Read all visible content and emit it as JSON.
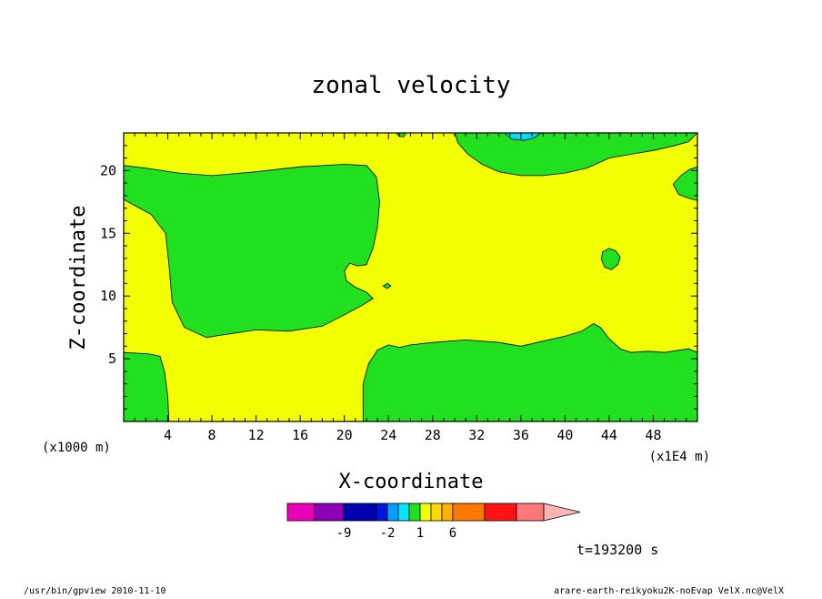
{
  "chart_data": {
    "type": "heatmap",
    "title": "zonal velocity",
    "xlabel": "X-coordinate",
    "ylabel": "Z-coordinate",
    "x_unit_left": "(x1000 m)",
    "x_unit_right": "(x1E4 m)",
    "xlim": [
      0,
      52
    ],
    "ylim": [
      0,
      23
    ],
    "x_ticks": [
      4,
      8,
      12,
      16,
      20,
      24,
      28,
      32,
      36,
      40,
      44,
      48
    ],
    "y_ticks": [
      5,
      10,
      15,
      20
    ],
    "background_color": "#f2ff00",
    "regions": [
      {
        "name": "upper-left-green",
        "color": "#20e020",
        "points": [
          [
            0,
            20.4
          ],
          [
            2,
            20.2
          ],
          [
            5,
            19.8
          ],
          [
            8,
            19.6
          ],
          [
            12,
            19.9
          ],
          [
            16,
            20.3
          ],
          [
            20,
            20.5
          ],
          [
            22,
            20.4
          ],
          [
            22.9,
            19.5
          ],
          [
            23.2,
            17.5
          ],
          [
            23.0,
            15.5
          ],
          [
            22.6,
            13.8
          ],
          [
            22,
            12.5
          ],
          [
            21.2,
            12.4
          ],
          [
            20.5,
            12.6
          ],
          [
            20,
            12
          ],
          [
            20.2,
            11.2
          ],
          [
            21,
            10.7
          ],
          [
            22,
            10.3
          ],
          [
            22.6,
            9.8
          ],
          [
            21.5,
            9.2
          ],
          [
            20,
            8.5
          ],
          [
            18,
            7.6
          ],
          [
            15,
            7.2
          ],
          [
            12,
            7.3
          ],
          [
            9,
            6.9
          ],
          [
            7.5,
            6.7
          ],
          [
            5.5,
            7.5
          ],
          [
            4.4,
            9.5
          ],
          [
            4.1,
            12.5
          ],
          [
            3.8,
            15
          ],
          [
            2.5,
            16.5
          ],
          [
            0,
            17.7
          ]
        ]
      },
      {
        "name": "lower-left-green",
        "color": "#20e020",
        "points": [
          [
            0,
            0
          ],
          [
            4.1,
            0
          ],
          [
            4,
            2
          ],
          [
            3.7,
            4
          ],
          [
            3.3,
            5.2
          ],
          [
            2.2,
            5.4
          ],
          [
            0,
            5.5
          ]
        ]
      },
      {
        "name": "lower-right-green",
        "color": "#20e020",
        "points": [
          [
            21.7,
            0
          ],
          [
            52,
            0
          ],
          [
            52,
            5.5
          ],
          [
            51.2,
            5.8
          ],
          [
            49,
            5.5
          ],
          [
            47.5,
            5.6
          ],
          [
            46,
            5.5
          ],
          [
            45,
            5.8
          ],
          [
            44,
            6.6
          ],
          [
            43.2,
            7.5
          ],
          [
            42.6,
            7.8
          ],
          [
            41.5,
            7.2
          ],
          [
            40,
            6.8
          ],
          [
            38,
            6.4
          ],
          [
            36,
            6
          ],
          [
            34,
            6.3
          ],
          [
            31,
            6.5
          ],
          [
            28,
            6.3
          ],
          [
            26,
            6.1
          ],
          [
            25,
            5.9
          ],
          [
            24,
            6.1
          ],
          [
            23,
            5.7
          ],
          [
            22.2,
            4.6
          ],
          [
            21.7,
            3
          ]
        ]
      },
      {
        "name": "top-right-green",
        "color": "#20e020",
        "points": [
          [
            30,
            23
          ],
          [
            52,
            23
          ],
          [
            51.2,
            22.3
          ],
          [
            50,
            22
          ],
          [
            48,
            21.6
          ],
          [
            46,
            21.3
          ],
          [
            44,
            21
          ],
          [
            42,
            20.2
          ],
          [
            40,
            19.8
          ],
          [
            38,
            19.6
          ],
          [
            36,
            19.6
          ],
          [
            34,
            19.9
          ],
          [
            32.5,
            20.5
          ],
          [
            31.2,
            21.3
          ],
          [
            30.3,
            22.2
          ]
        ]
      },
      {
        "name": "right-edge-green",
        "color": "#20e020",
        "points": [
          [
            52,
            20.3
          ],
          [
            51.3,
            20.1
          ],
          [
            50.5,
            19.6
          ],
          [
            49.8,
            18.9
          ],
          [
            50.3,
            18.1
          ],
          [
            51.2,
            17.8
          ],
          [
            52,
            17.6
          ]
        ]
      },
      {
        "name": "small-green-blob",
        "color": "#20e020",
        "points": [
          [
            43.4,
            13.5
          ],
          [
            44,
            13.8
          ],
          [
            44.6,
            13.6
          ],
          [
            45,
            13.1
          ],
          [
            44.8,
            12.5
          ],
          [
            44.2,
            12.1
          ],
          [
            43.6,
            12.3
          ],
          [
            43.3,
            12.9
          ]
        ]
      },
      {
        "name": "top-cyan",
        "color": "#00dcff",
        "points": [
          [
            34.5,
            23
          ],
          [
            37.8,
            23
          ],
          [
            37.2,
            22.6
          ],
          [
            36.2,
            22.4
          ],
          [
            35.2,
            22.5
          ]
        ]
      },
      {
        "name": "top-left-green-sliver",
        "color": "#20e020",
        "points": [
          [
            24.7,
            23
          ],
          [
            25.6,
            23
          ],
          [
            25.4,
            22.7
          ],
          [
            25.0,
            22.7
          ]
        ]
      },
      {
        "name": "tiny-contour",
        "color": "#20e020",
        "points": [
          [
            23.5,
            10.8
          ],
          [
            23.9,
            11.0
          ],
          [
            24.2,
            10.8
          ],
          [
            23.9,
            10.6
          ]
        ]
      }
    ],
    "colorbar": {
      "colors": [
        "#e800b8",
        "#8c00b8",
        "#0000b0",
        "#0014e0",
        "#00a0ff",
        "#00e6ff",
        "#20e020",
        "#f2ff00",
        "#ffd800",
        "#ffb000",
        "#ff7800",
        "#ff1414",
        "#ff7878",
        "#ffb4b4"
      ],
      "labels": [
        "-9",
        "-2",
        "1",
        "6"
      ]
    },
    "time_label": "t=193200 s"
  },
  "footer": {
    "left": "/usr/bin/gpview  2010-11-10",
    "right": "arare-earth-reikyoku2K-noEvap_VelX.nc@VelX"
  }
}
